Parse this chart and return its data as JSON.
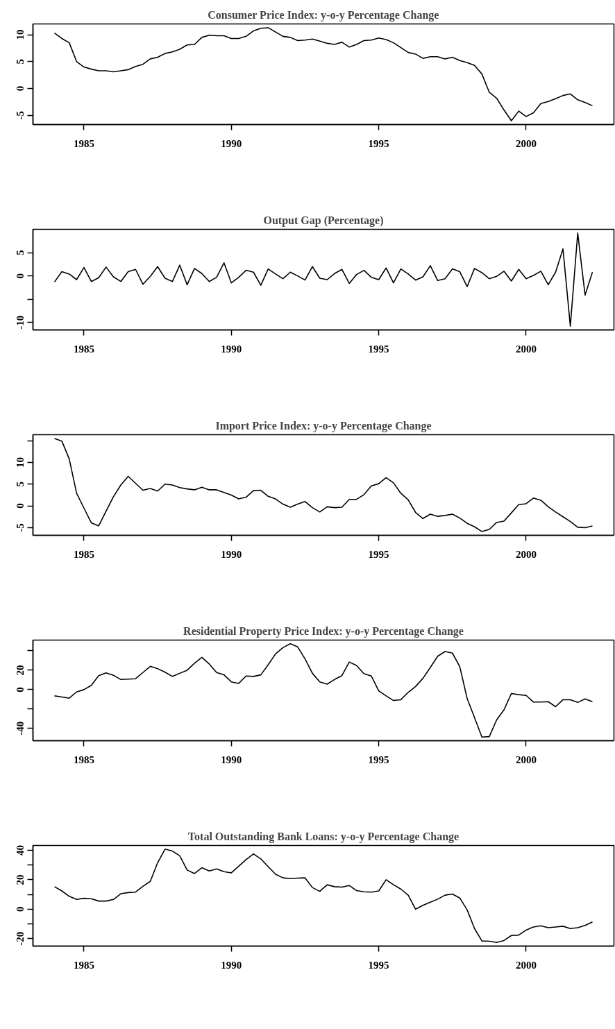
{
  "chart_data": [
    {
      "type": "line",
      "title": "Consumer Price Index: y-o-y Percentage Change",
      "color": "#000000",
      "xlim": [
        1983.27,
        2002.98
      ],
      "ylim": [
        -6.7,
        12.0
      ],
      "xticks": [
        1985,
        1990,
        1995,
        2000
      ],
      "yticks": [
        -5,
        0,
        5,
        10
      ],
      "x": [
        1984,
        1984.25,
        1984.5,
        1984.75,
        1985,
        1985.25,
        1985.5,
        1985.75,
        1986,
        1986.25,
        1986.5,
        1986.75,
        1987,
        1987.25,
        1987.5,
        1987.75,
        1988,
        1988.25,
        1988.5,
        1988.75,
        1989,
        1989.25,
        1989.5,
        1989.75,
        1990,
        1990.25,
        1990.5,
        1990.75,
        1991,
        1991.25,
        1991.5,
        1991.75,
        1992,
        1992.25,
        1992.5,
        1992.75,
        1993,
        1993.25,
        1993.5,
        1993.75,
        1994,
        1994.25,
        1994.5,
        1994.75,
        1995,
        1995.25,
        1995.5,
        1995.75,
        1996,
        1996.25,
        1996.5,
        1996.75,
        1997,
        1997.25,
        1997.5,
        1997.75,
        1998,
        1998.25,
        1998.5,
        1998.75,
        1999,
        1999.25,
        1999.5,
        1999.75,
        2000,
        2000.25,
        2000.5,
        2000.75,
        2001,
        2001.25,
        2001.5,
        2001.75,
        2002,
        2002.25
      ],
      "values": [
        10.3,
        9.3,
        8.5,
        5.0,
        4.0,
        3.6,
        3.3,
        3.3,
        3.1,
        3.3,
        3.5,
        4.1,
        4.5,
        5.5,
        5.8,
        6.5,
        6.8,
        7.3,
        8.1,
        8.2,
        9.5,
        9.9,
        9.8,
        9.8,
        9.3,
        9.3,
        9.7,
        10.7,
        11.2,
        11.3,
        10.5,
        9.7,
        9.5,
        8.9,
        9.0,
        9.2,
        8.8,
        8.4,
        8.2,
        8.6,
        7.7,
        8.2,
        8.9,
        9.0,
        9.4,
        9.1,
        8.5,
        7.6,
        6.7,
        6.4,
        5.6,
        5.9,
        5.9,
        5.5,
        5.8,
        5.2,
        4.8,
        4.3,
        2.7,
        -0.7,
        -1.8,
        -4.0,
        -6.0,
        -4.2,
        -5.2,
        -4.5,
        -2.8,
        -2.4,
        -1.9,
        -1.3,
        -1.0,
        -2.1,
        -2.6,
        -3.2
      ]
    },
    {
      "type": "line",
      "title": "Output Gap (Percentage)",
      "color": "#000000",
      "xlim": [
        1983.27,
        2002.98
      ],
      "ylim": [
        -11.6,
        10.0
      ],
      "xticks": [
        1985,
        1990,
        1995,
        2000
      ],
      "yticks": [
        -10,
        {
          "value": -5,
          "label": null
        },
        0,
        5
      ],
      "x": [
        1984,
        1984.25,
        1984.5,
        1984.75,
        1985,
        1985.25,
        1985.5,
        1985.75,
        1986,
        1986.25,
        1986.5,
        1986.75,
        1987,
        1987.25,
        1987.5,
        1987.75,
        1988,
        1988.25,
        1988.5,
        1988.75,
        1989,
        1989.25,
        1989.5,
        1989.75,
        1990,
        1990.25,
        1990.5,
        1990.75,
        1991,
        1991.25,
        1991.5,
        1991.75,
        1992,
        1992.25,
        1992.5,
        1992.75,
        1993,
        1993.25,
        1993.5,
        1993.75,
        1994,
        1994.25,
        1994.5,
        1994.75,
        1995,
        1995.25,
        1995.5,
        1995.75,
        1996,
        1996.25,
        1996.5,
        1996.75,
        1997,
        1997.25,
        1997.5,
        1997.75,
        1998,
        1998.25,
        1998.5,
        1998.75,
        1999,
        1999.25,
        1999.5,
        1999.75,
        2000,
        2000.25,
        2000.5,
        2000.75,
        2001,
        2001.25,
        2001.5,
        2001.75,
        2002,
        2002.25
      ],
      "values": [
        -1.3,
        0.9,
        0.4,
        -0.8,
        1.8,
        -1.2,
        -0.4,
        1.9,
        -0.2,
        -1.2,
        0.9,
        1.4,
        -1.8,
        -0.1,
        2.0,
        -0.5,
        -1.2,
        2.3,
        -1.9,
        1.6,
        0.5,
        -1.2,
        -0.3,
        2.8,
        -1.5,
        -0.3,
        1.2,
        0.8,
        -2.0,
        1.5,
        0.4,
        -0.6,
        0.8,
        0.0,
        -0.9,
        2.0,
        -0.5,
        -0.8,
        0.5,
        1.4,
        -1.6,
        0.3,
        1.2,
        -0.3,
        -0.8,
        1.7,
        -1.5,
        1.5,
        0.4,
        -0.9,
        -0.2,
        2.2,
        -1.0,
        -0.6,
        1.5,
        0.9,
        -2.3,
        1.6,
        0.7,
        -0.6,
        -0.1,
        1.0,
        -1.1,
        1.4,
        -0.6,
        0.1,
        1.0,
        -1.9,
        0.8,
        5.8,
        -10.8,
        9.2,
        -4.1,
        0.8
      ]
    },
    {
      "type": "line",
      "title": "Import Price Index: y-o-y Percentage Change",
      "color": "#000000",
      "xlim": [
        1983.27,
        2002.98
      ],
      "ylim": [
        -6.76,
        16.36
      ],
      "xticks": [
        1985,
        1990,
        1995,
        2000
      ],
      "yticks": [
        -5,
        0,
        5,
        10,
        {
          "value": 15,
          "label": null
        }
      ],
      "x": [
        1984,
        1984.25,
        1984.5,
        1984.75,
        1985,
        1985.25,
        1985.5,
        1985.75,
        1986,
        1986.25,
        1986.5,
        1986.75,
        1987,
        1987.25,
        1987.5,
        1987.75,
        1988,
        1988.25,
        1988.5,
        1988.75,
        1989,
        1989.25,
        1989.5,
        1989.75,
        1990,
        1990.25,
        1990.5,
        1990.75,
        1991,
        1991.25,
        1991.5,
        1991.75,
        1992,
        1992.25,
        1992.5,
        1992.75,
        1993,
        1993.25,
        1993.5,
        1993.75,
        1994,
        1994.25,
        1994.5,
        1994.75,
        1995,
        1995.25,
        1995.5,
        1995.75,
        1996,
        1996.25,
        1996.5,
        1996.75,
        1997,
        1997.25,
        1997.5,
        1997.75,
        1998,
        1998.25,
        1998.5,
        1998.75,
        1999,
        1999.25,
        1999.5,
        1999.75,
        2000,
        2000.25,
        2000.5,
        2000.75,
        2001,
        2001.25,
        2001.5,
        2001.75,
        2002,
        2002.25
      ],
      "values": [
        15.5,
        14.9,
        10.8,
        2.9,
        -0.5,
        -3.9,
        -4.6,
        -1.2,
        2.1,
        4.8,
        6.8,
        5.2,
        3.6,
        4.0,
        3.4,
        5.0,
        4.8,
        4.2,
        3.9,
        3.7,
        4.3,
        3.7,
        3.7,
        3.1,
        2.5,
        1.6,
        2.0,
        3.5,
        3.6,
        2.2,
        1.6,
        0.4,
        -0.3,
        0.4,
        1.0,
        -0.4,
        -1.4,
        -0.2,
        -0.4,
        -0.3,
        1.5,
        1.5,
        2.6,
        4.6,
        5.1,
        6.5,
        5.3,
        2.9,
        1.4,
        -1.5,
        -2.9,
        -1.9,
        -2.4,
        -2.2,
        -1.9,
        -2.8,
        -4.0,
        -4.8,
        -5.9,
        -5.4,
        -3.8,
        -3.5,
        -1.6,
        0.3,
        0.5,
        1.8,
        1.3,
        -0.2,
        -1.4,
        -2.5,
        -3.6,
        -4.9,
        -5.0,
        -4.6
      ]
    },
    {
      "type": "line",
      "title": "Residential Property Price Index: y-o-y Percentage Change",
      "color": "#000000",
      "xlim": [
        1983.27,
        2002.98
      ],
      "ylim": [
        -52.6,
        51.0
      ],
      "xticks": [
        1985,
        1990,
        1995,
        2000
      ],
      "yticks": [
        -40,
        {
          "value": -20,
          "label": null
        },
        0,
        20,
        {
          "value": 40,
          "label": null
        }
      ],
      "x": [
        1984,
        1984.25,
        1984.5,
        1984.75,
        1985,
        1985.25,
        1985.5,
        1985.75,
        1986,
        1986.25,
        1986.5,
        1986.75,
        1987,
        1987.25,
        1987.5,
        1987.75,
        1988,
        1988.25,
        1988.5,
        1988.75,
        1989,
        1989.25,
        1989.5,
        1989.75,
        1990,
        1990.25,
        1990.5,
        1990.75,
        1991,
        1991.25,
        1991.5,
        1991.75,
        1992,
        1992.25,
        1992.5,
        1992.75,
        1993,
        1993.25,
        1993.5,
        1993.75,
        1994,
        1994.25,
        1994.5,
        1994.75,
        1995,
        1995.25,
        1995.5,
        1995.75,
        1996,
        1996.25,
        1996.5,
        1996.75,
        1997,
        1997.25,
        1997.5,
        1997.75,
        1998,
        1998.25,
        1998.5,
        1998.75,
        1999,
        1999.25,
        1999.5,
        1999.75,
        2000,
        2000.25,
        2000.5,
        2000.75,
        2001,
        2001.25,
        2001.5,
        2001.75,
        2002,
        2002.25
      ],
      "values": [
        -6.4,
        -7.6,
        -8.8,
        -2.4,
        0,
        4.4,
        14.4,
        17.2,
        14.8,
        10.4,
        10.8,
        11.2,
        17.6,
        24,
        21.6,
        18,
        13.6,
        16.8,
        20,
        27.2,
        33.2,
        26.4,
        17.6,
        15.2,
        8,
        6.4,
        14,
        13.6,
        15.2,
        25.6,
        36.8,
        43.2,
        47.2,
        44,
        31.6,
        16.8,
        8,
        5.6,
        10.4,
        14.4,
        28.4,
        24.8,
        16.4,
        14,
        -1.2,
        -6.4,
        -11.2,
        -10.4,
        -2.8,
        3.2,
        11.6,
        22.8,
        34.4,
        39.2,
        37.6,
        23.6,
        -9.2,
        -28.8,
        -48.8,
        -48.4,
        -31.2,
        -20.8,
        -4,
        -5.2,
        -6,
        -12.8,
        -12.8,
        -12.4,
        -17.6,
        -10.4,
        -10.4,
        -13.2,
        -9.6,
        -12.4
      ]
    },
    {
      "type": "line",
      "title": "Total Outstanding Bank Loans: y-o-y Percentage Change",
      "color": "#000000",
      "xlim": [
        1983.27,
        2002.98
      ],
      "ylim": [
        -25.1,
        43.3
      ],
      "xticks": [
        1985,
        1990,
        1995,
        2000
      ],
      "yticks": [
        -20,
        {
          "value": -10,
          "label": null
        },
        0,
        {
          "value": 10,
          "label": null
        },
        20,
        {
          "value": 30,
          "label": null
        },
        40
      ],
      "x": [
        1984,
        1984.25,
        1984.5,
        1984.75,
        1985,
        1985.25,
        1985.5,
        1985.75,
        1986,
        1986.25,
        1986.5,
        1986.75,
        1987,
        1987.25,
        1987.5,
        1987.75,
        1988,
        1988.25,
        1988.5,
        1988.75,
        1989,
        1989.25,
        1989.5,
        1989.75,
        1990,
        1990.25,
        1990.5,
        1990.75,
        1991,
        1991.25,
        1991.5,
        1991.75,
        1992,
        1992.25,
        1992.5,
        1992.75,
        1993,
        1993.25,
        1993.5,
        1993.75,
        1994,
        1994.25,
        1994.5,
        1994.75,
        1995,
        1995.25,
        1995.5,
        1995.75,
        1996,
        1996.25,
        1996.5,
        1996.75,
        1997,
        1997.25,
        1997.5,
        1997.75,
        1998,
        1998.25,
        1998.5,
        1998.75,
        1999,
        1999.25,
        1999.5,
        1999.75,
        2000,
        2000.25,
        2000.5,
        2000.75,
        2001,
        2001.25,
        2001.5,
        2001.75,
        2002,
        2002.25
      ],
      "values": [
        15.3,
        12.4,
        8.7,
        6.6,
        7.4,
        7.1,
        5.5,
        5.5,
        6.6,
        10.5,
        11.3,
        11.6,
        15.5,
        18.9,
        31.6,
        40.8,
        39.5,
        36.3,
        26.6,
        24.2,
        28.2,
        26,
        27.4,
        25.5,
        24.7,
        29.2,
        33.7,
        37.6,
        34.2,
        28.9,
        23.7,
        21.3,
        20.8,
        21.1,
        21.3,
        14.7,
        12.1,
        16.6,
        15.3,
        15,
        16.1,
        12.6,
        11.8,
        11.6,
        12.4,
        20,
        16.6,
        13.7,
        9.5,
        0,
        2.6,
        4.7,
        6.8,
        9.5,
        10.3,
        7.6,
        -0.5,
        -13.2,
        -21.6,
        -21.8,
        -22.6,
        -21.3,
        -17.9,
        -17.6,
        -14.2,
        -12.1,
        -11.3,
        -12.6,
        -12.1,
        -11.6,
        -13.2,
        -12.6,
        -11.1,
        -8.7
      ]
    }
  ]
}
